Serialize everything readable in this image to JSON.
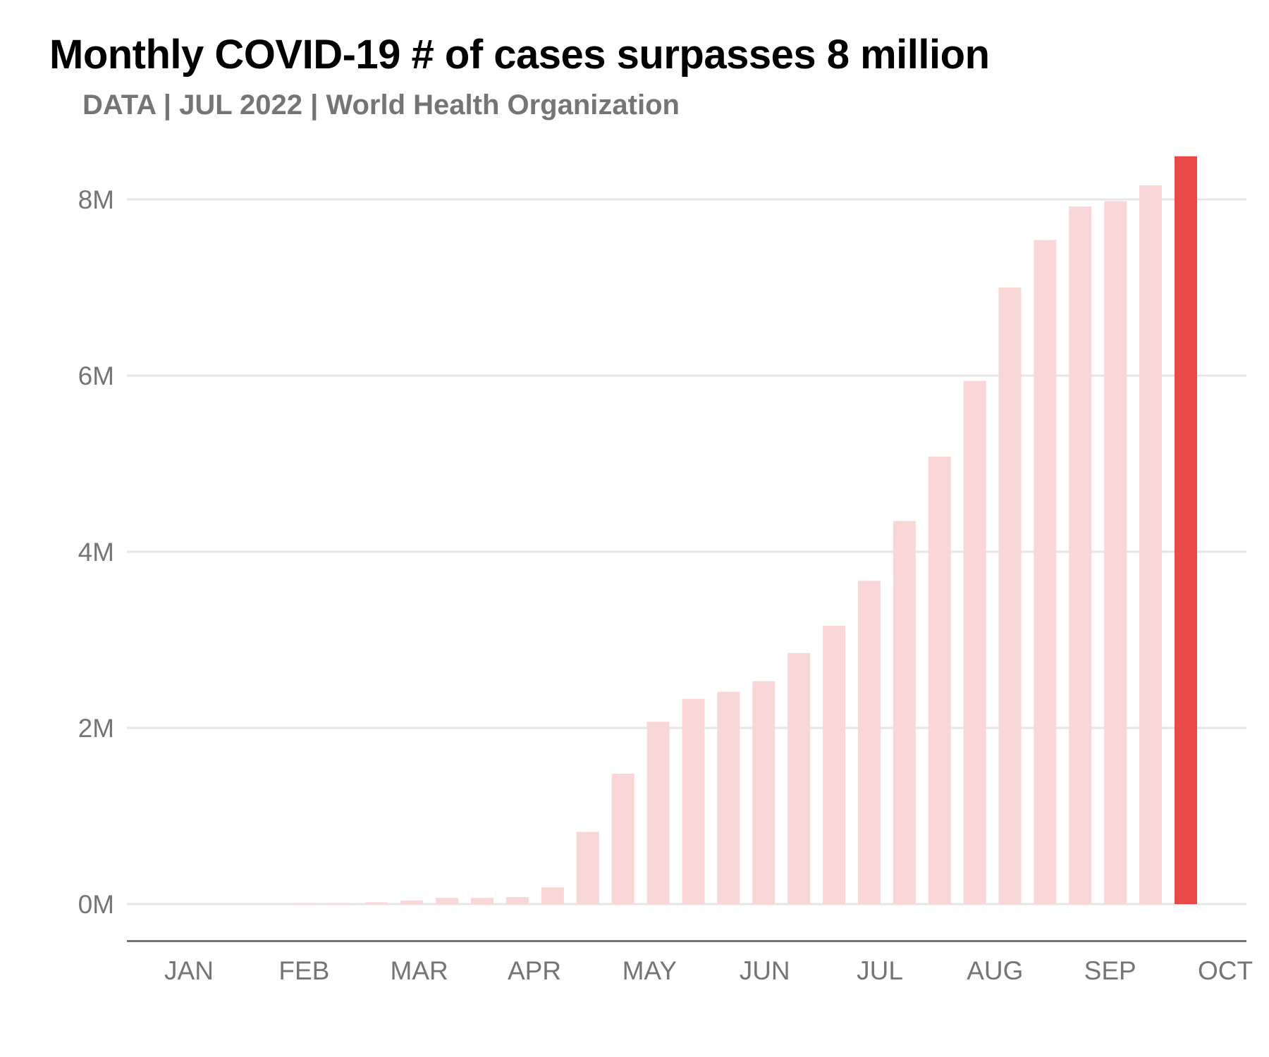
{
  "chart_data": {
    "type": "bar",
    "title": "Monthly COVID-19 # of cases surpasses 8 million",
    "subtitle": "DATA | JUL 2022 | World Health Organization",
    "xlabel": "",
    "ylabel": "",
    "ylim": [
      -420000,
      8600000
    ],
    "yticks": [
      0,
      2000000,
      4000000,
      6000000,
      8000000
    ],
    "ytick_labels": [
      "0M",
      "2M",
      "4M",
      "6M",
      "8M"
    ],
    "xtick_labels": [
      "JAN",
      "FEB",
      "MAR",
      "APR",
      "MAY",
      "JUN",
      "JUL",
      "AUG",
      "SEP",
      "OCT"
    ],
    "grid": true,
    "bar_color": "#f8d7d6",
    "highlight_color": "#e84a4a",
    "highlight_index": 29,
    "series": [
      {
        "values": [
          0,
          0,
          0,
          2000,
          5000,
          10000,
          20000,
          40000,
          70000,
          70000,
          80000,
          190000,
          820000,
          1480000,
          2070000,
          2330000,
          2410000,
          2530000,
          2850000,
          3160000,
          3670000,
          4350000,
          5080000,
          5940000,
          7000000,
          7540000,
          7920000,
          7980000,
          8160000,
          8490000
        ]
      }
    ]
  }
}
